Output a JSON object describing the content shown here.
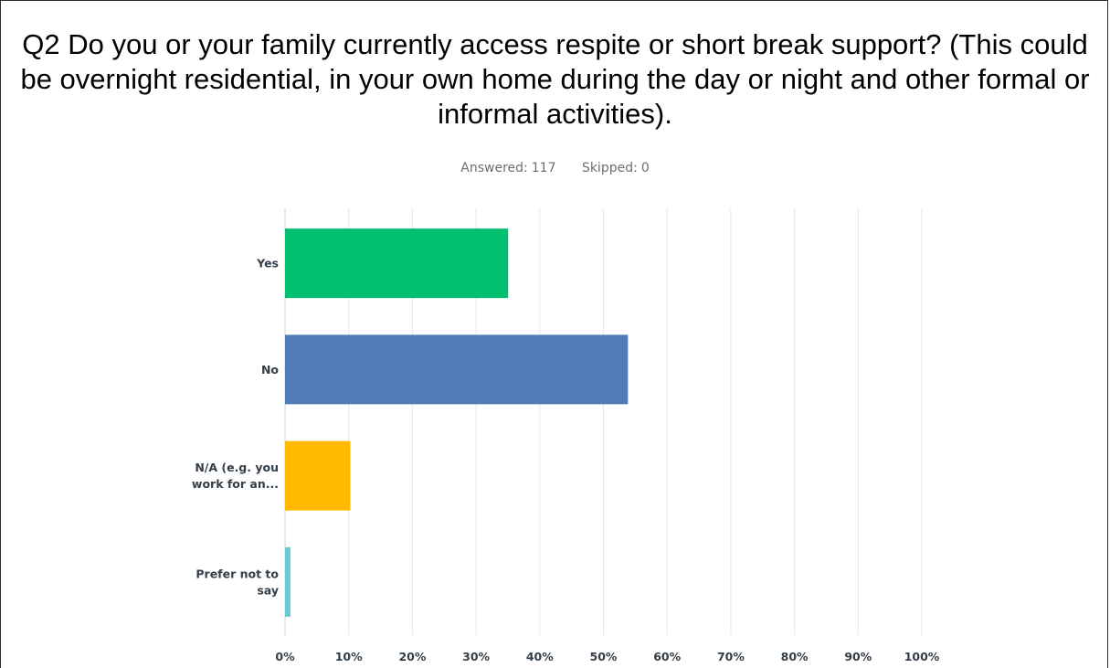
{
  "header": {
    "title": "Q2 Do you or your family currently access respite or short break support? (This could be overnight residential, in your own home during the day or night and other formal or informal activities).",
    "answered_label": "Answered:",
    "answered_value": "117",
    "skipped_label": "Skipped:",
    "skipped_value": "0"
  },
  "chart_data": {
    "type": "bar",
    "orientation": "horizontal",
    "categories": [
      "Yes",
      "No",
      "N/A (e.g. you work for an...",
      "Prefer not to say"
    ],
    "category_lines": [
      [
        "Yes"
      ],
      [
        "No"
      ],
      [
        "N/A (e.g. you",
        "work for an..."
      ],
      [
        "Prefer not to",
        "say"
      ]
    ],
    "values": [
      35.04,
      53.85,
      10.26,
      0.85
    ],
    "colors": [
      "#00bf6f",
      "#507cb6",
      "#ffba00",
      "#6bc8cd"
    ],
    "xlim": [
      0,
      100
    ],
    "ticks": [
      "0%",
      "10%",
      "20%",
      "30%",
      "40%",
      "50%",
      "60%",
      "70%",
      "80%",
      "90%",
      "100%"
    ],
    "grid": true,
    "title": "",
    "xlabel": "",
    "ylabel": ""
  }
}
